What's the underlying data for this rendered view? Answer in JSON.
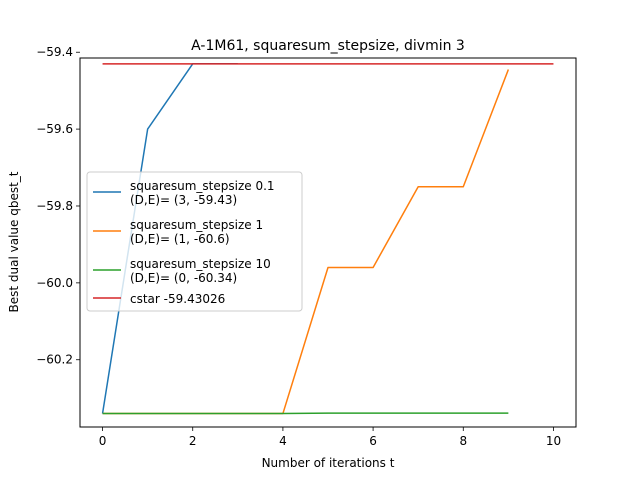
{
  "chart_data": {
    "type": "line",
    "title": "A-1M61, squaresum_stepsize, divmin 3",
    "xlabel": "Number of iterations t",
    "ylabel": "Best dual value qbest_t",
    "xlim": [
      -0.5,
      10.5
    ],
    "ylim": [
      -60.375,
      -59.415
    ],
    "xticks": [
      0,
      2,
      4,
      6,
      8,
      10
    ],
    "yticks": [
      -60.2,
      -60.0,
      -59.8,
      -59.6,
      -59.4
    ],
    "ytick_labels": [
      "−60.2",
      "−60.0",
      "−59.8",
      "−59.6",
      "−59.4"
    ],
    "grid": false,
    "legend_position": "center-left",
    "series": [
      {
        "name": "squaresum_stepsize 0.1\n(D,E)= (3, -59.43)",
        "legend_line1": "squaresum_stepsize 0.1",
        "legend_line2": "(D,E)= (3, -59.43)",
        "color": "#1f77b4",
        "x": [
          0,
          1,
          2,
          3
        ],
        "y": [
          -60.34,
          -59.6,
          -59.43,
          -59.43
        ]
      },
      {
        "name": "squaresum_stepsize 1\n(D,E)= (1, -60.6)",
        "legend_line1": "squaresum_stepsize 1",
        "legend_line2": "(D,E)= (1, -60.6)",
        "color": "#ff7f0e",
        "x": [
          0,
          1,
          2,
          3,
          4,
          5,
          6,
          7,
          8,
          9
        ],
        "y": [
          -60.34,
          -60.34,
          -60.34,
          -60.34,
          -60.34,
          -59.96,
          -59.96,
          -59.75,
          -59.75,
          -59.445
        ]
      },
      {
        "name": "squaresum_stepsize 10\n(D,E)= (0, -60.34)",
        "legend_line1": "squaresum_stepsize 10",
        "legend_line2": "(D,E)= (0, -60.34)",
        "color": "#2ca02c",
        "x": [
          0,
          1,
          2,
          3,
          4,
          5,
          6,
          7,
          8,
          9
        ],
        "y": [
          -60.34,
          -60.34,
          -60.34,
          -60.34,
          -60.34,
          -60.339,
          -60.339,
          -60.339,
          -60.339,
          -60.339
        ]
      },
      {
        "name": "cstar -59.43026",
        "legend_line1": "cstar -59.43026",
        "legend_line2": "",
        "color": "#d62728",
        "x": [
          0,
          10
        ],
        "y": [
          -59.43026,
          -59.43026
        ]
      }
    ]
  }
}
